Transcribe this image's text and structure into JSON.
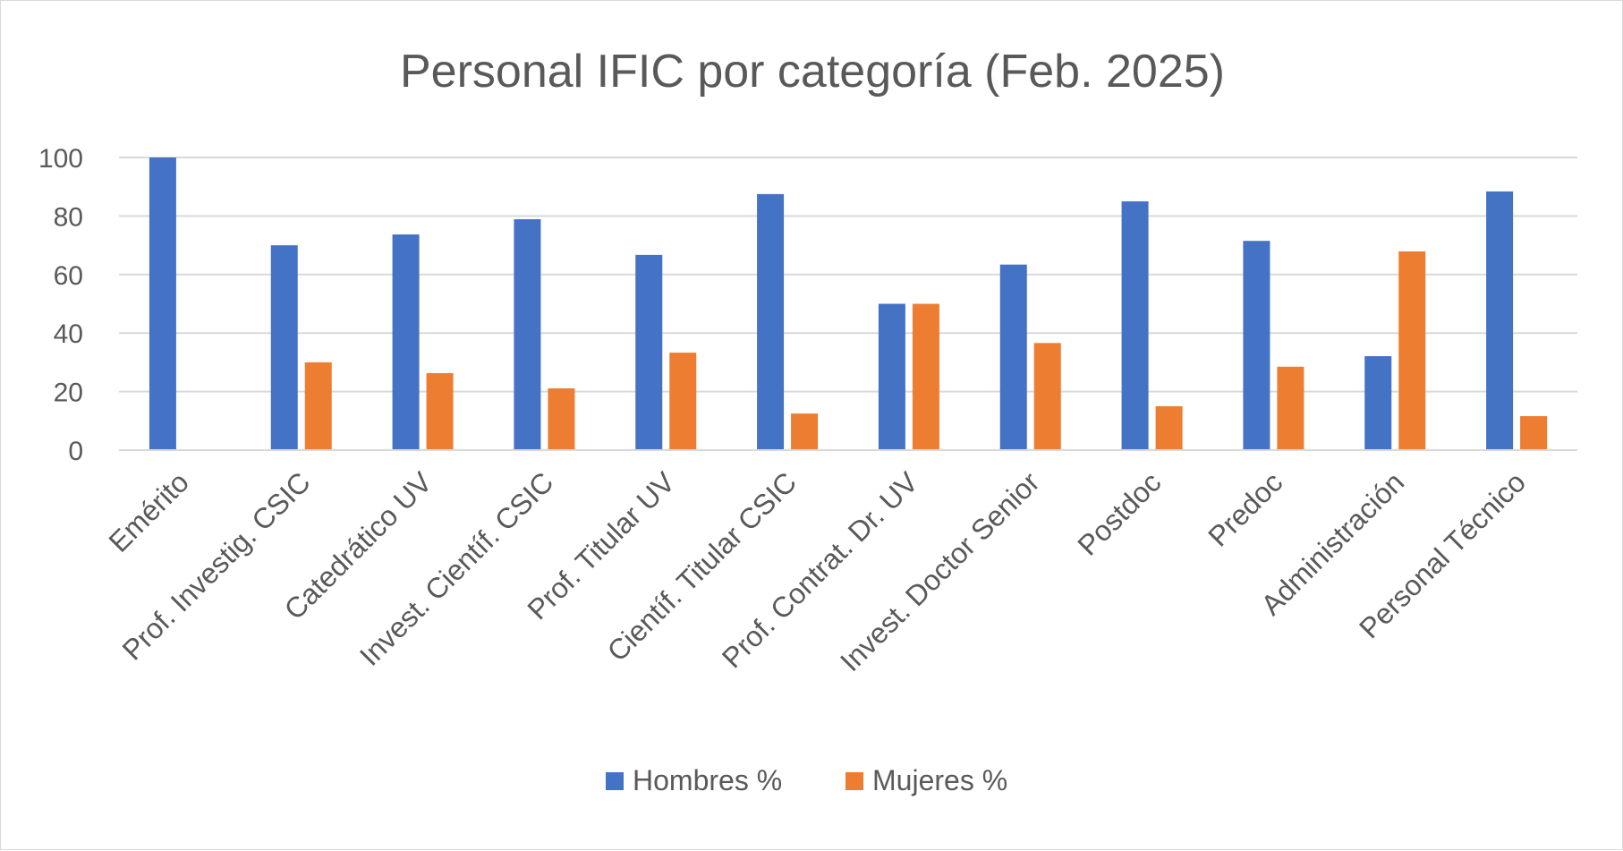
{
  "chart_data": {
    "type": "bar",
    "title": "Personal IFIC por categoría (Feb. 2025)",
    "xlabel": "",
    "ylabel": "",
    "ylim": [
      0,
      100
    ],
    "yticks": [
      0,
      20,
      40,
      60,
      80,
      100
    ],
    "grid": true,
    "legend_position": "bottom",
    "categories": [
      "Emérito",
      "Prof. Investig. CSIC",
      "Catedrático UV",
      "Invest. Científ. CSIC",
      "Prof. Titular UV",
      "Científ. Titular CSIC",
      "Prof. Contrat. Dr. UV",
      "Invest. Doctor Senior",
      "Postdoc",
      "Predoc",
      "Administración",
      "Personal Técnico"
    ],
    "series": [
      {
        "name": "Hombres %",
        "color": "#4472c4",
        "values": [
          100,
          70,
          73.7,
          78.9,
          66.7,
          87.5,
          50,
          63.4,
          85,
          71.5,
          32.1,
          88.4
        ]
      },
      {
        "name": "Mujeres %",
        "color": "#ed7d31",
        "values": [
          0,
          30,
          26.3,
          21.1,
          33.3,
          12.5,
          50,
          36.6,
          15,
          28.5,
          67.9,
          11.6
        ]
      }
    ]
  }
}
